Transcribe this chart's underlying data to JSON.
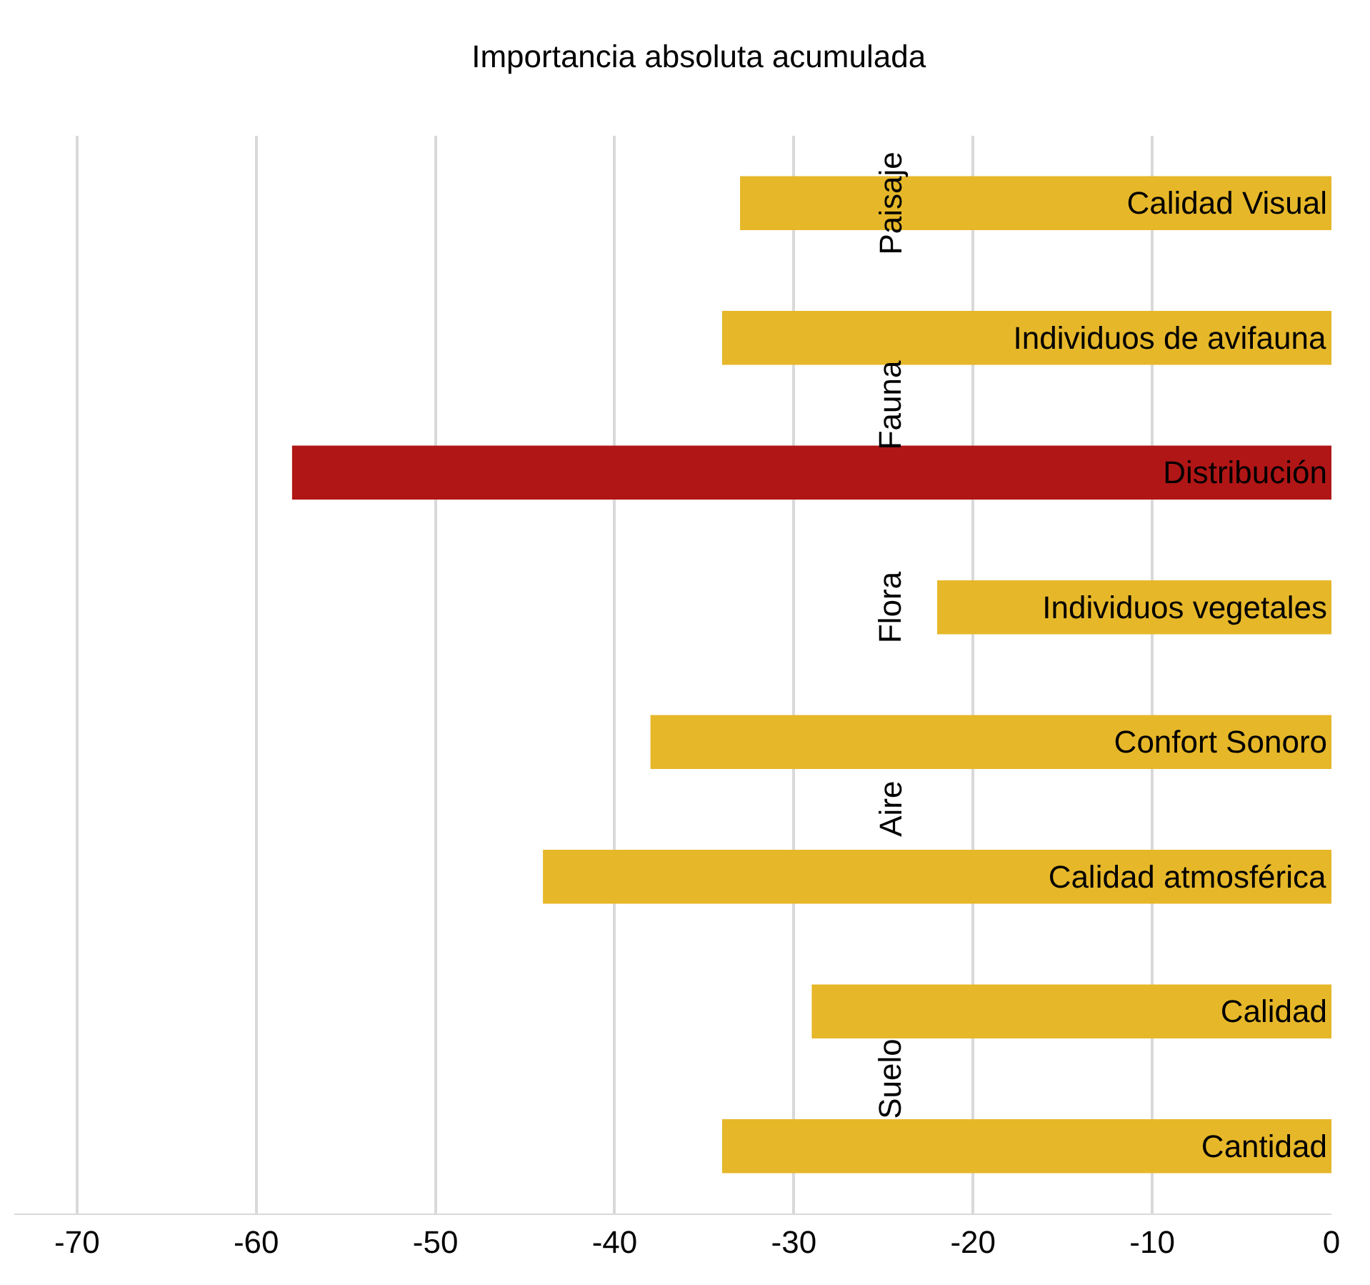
{
  "chart_data": {
    "type": "bar",
    "orientation": "horizontal",
    "title": "Importancia absoluta acumulada",
    "categories": [
      "Calidad Visual",
      "Individuos de avifauna",
      "Distribución",
      "Individuos vegetales",
      "Confort Sonoro",
      "Calidad atmosférica",
      "Calidad",
      "Cantidad"
    ],
    "values": [
      -33,
      -34,
      -58,
      -22,
      -38,
      -44,
      -29,
      -34
    ],
    "colors": [
      "#e6b729",
      "#e6b729",
      "#b01616",
      "#e6b729",
      "#e6b729",
      "#e6b729",
      "#e6b729",
      "#e6b729"
    ],
    "xlim": [
      -73.5,
      0
    ],
    "xticks": [
      -70,
      -60,
      -50,
      -40,
      -30,
      -20,
      -10,
      0
    ],
    "grid": "x",
    "tick_labels": "x",
    "annotations": [
      "Paisaje",
      "Fauna",
      "Flora",
      "Aire",
      "Suelo"
    ]
  }
}
